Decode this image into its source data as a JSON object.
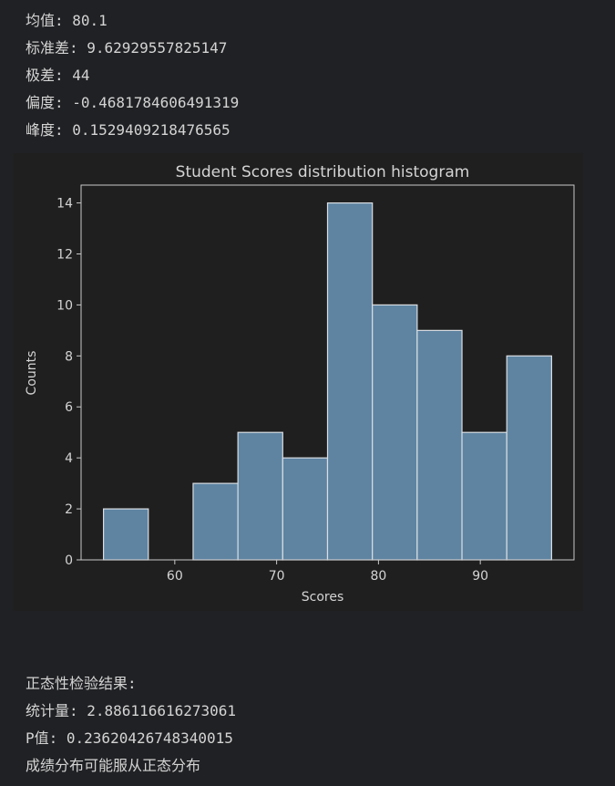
{
  "stats": {
    "mean": "均值: 80.1",
    "std": "标准差: 9.62929557825147",
    "range": "极差: 44",
    "skew": "偏度: -0.4681784606491319",
    "kurtosis": "峰度: 0.1529409218476565"
  },
  "result": {
    "heading": "正态性检验结果:",
    "statistic": "统计量: 2.886116616273061",
    "pvalue": "P值: 0.23620426748340015",
    "conclusion": "成绩分布可能服从正态分布"
  },
  "colors": {
    "bar_fill": "#5e84a2",
    "bar_edge": "#d9dde2",
    "axes": "#c8c8c8",
    "text": "#d4d4d4",
    "background": "#1f1f1f"
  },
  "chart_data": {
    "type": "bar",
    "title": "Student Scores distribution histogram",
    "xlabel": "Scores",
    "ylabel": "Counts",
    "bins": [
      {
        "x0": 53.0,
        "x1": 57.4,
        "count": 2
      },
      {
        "x0": 57.4,
        "x1": 61.8,
        "count": 0
      },
      {
        "x0": 61.8,
        "x1": 66.2,
        "count": 3
      },
      {
        "x0": 66.2,
        "x1": 70.6,
        "count": 5
      },
      {
        "x0": 70.6,
        "x1": 75.0,
        "count": 4
      },
      {
        "x0": 75.0,
        "x1": 79.4,
        "count": 14
      },
      {
        "x0": 79.4,
        "x1": 83.8,
        "count": 10
      },
      {
        "x0": 83.8,
        "x1": 88.2,
        "count": 9
      },
      {
        "x0": 88.2,
        "x1": 92.6,
        "count": 5
      },
      {
        "x0": 92.6,
        "x1": 97.0,
        "count": 8
      }
    ],
    "xlim": [
      50.8,
      99.2
    ],
    "ylim": [
      0,
      14.7
    ],
    "xticks": [
      60,
      70,
      80,
      90
    ],
    "yticks": [
      0,
      2,
      4,
      6,
      8,
      10,
      12,
      14
    ],
    "grid": false,
    "legend": "none"
  }
}
